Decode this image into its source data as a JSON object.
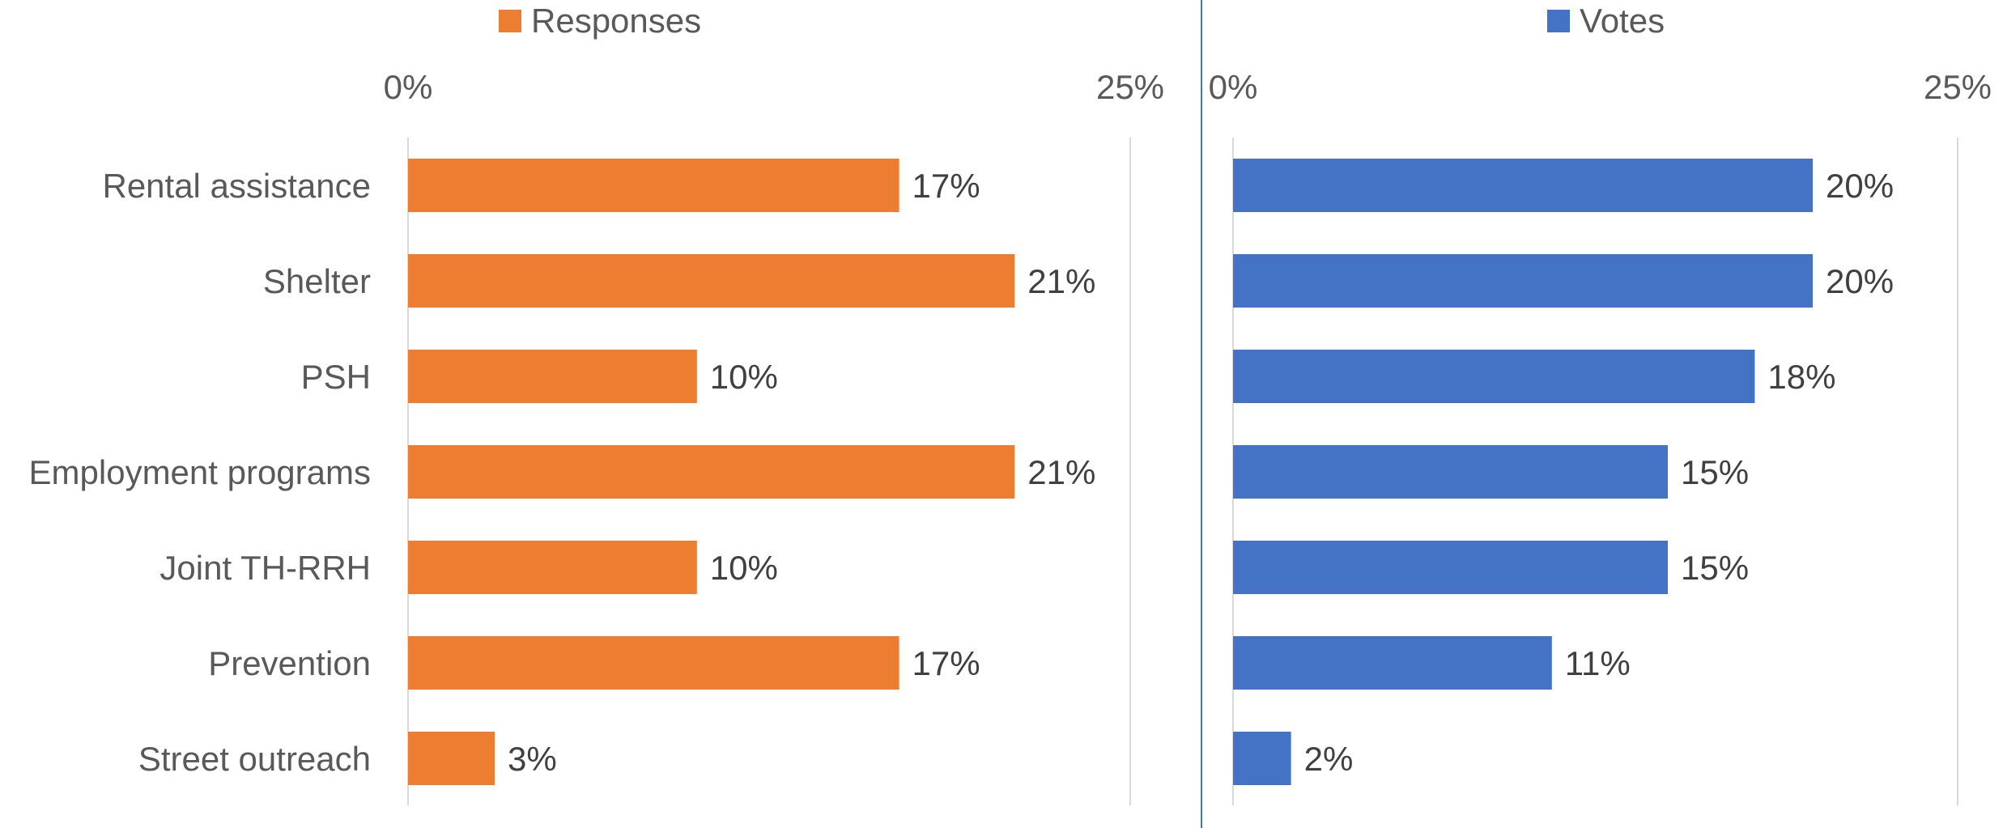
{
  "chart_data": [
    {
      "type": "bar",
      "orientation": "horizontal",
      "categories": [
        "Rental assistance",
        "Shelter",
        "PSH",
        "Employment programs",
        "Joint TH-RRH",
        "Prevention",
        "Street outreach"
      ],
      "series": [
        {
          "name": "Responses",
          "values": [
            17,
            21,
            10,
            21,
            10,
            17,
            3
          ],
          "labels": [
            "17%",
            "21%",
            "10%",
            "21%",
            "10%",
            "17%",
            "3%"
          ],
          "color": "#ed7d31"
        }
      ],
      "xlim": [
        0,
        25
      ],
      "tick_labels": [
        "0%",
        "25%"
      ],
      "legend_position": "top",
      "grid": true
    },
    {
      "type": "bar",
      "orientation": "horizontal",
      "categories": [
        "Rental assistance",
        "Shelter",
        "PSH",
        "Employment programs",
        "Joint TH-RRH",
        "Prevention",
        "Street outreach"
      ],
      "series": [
        {
          "name": "Votes",
          "values": [
            20,
            20,
            18,
            15,
            15,
            11,
            2
          ],
          "labels": [
            "20%",
            "20%",
            "18%",
            "15%",
            "15%",
            "11%",
            "2%"
          ],
          "color": "#4472c4"
        }
      ],
      "xlim": [
        0,
        25
      ],
      "tick_labels": [
        "0%",
        "25%"
      ],
      "legend_position": "top",
      "grid": true
    }
  ]
}
